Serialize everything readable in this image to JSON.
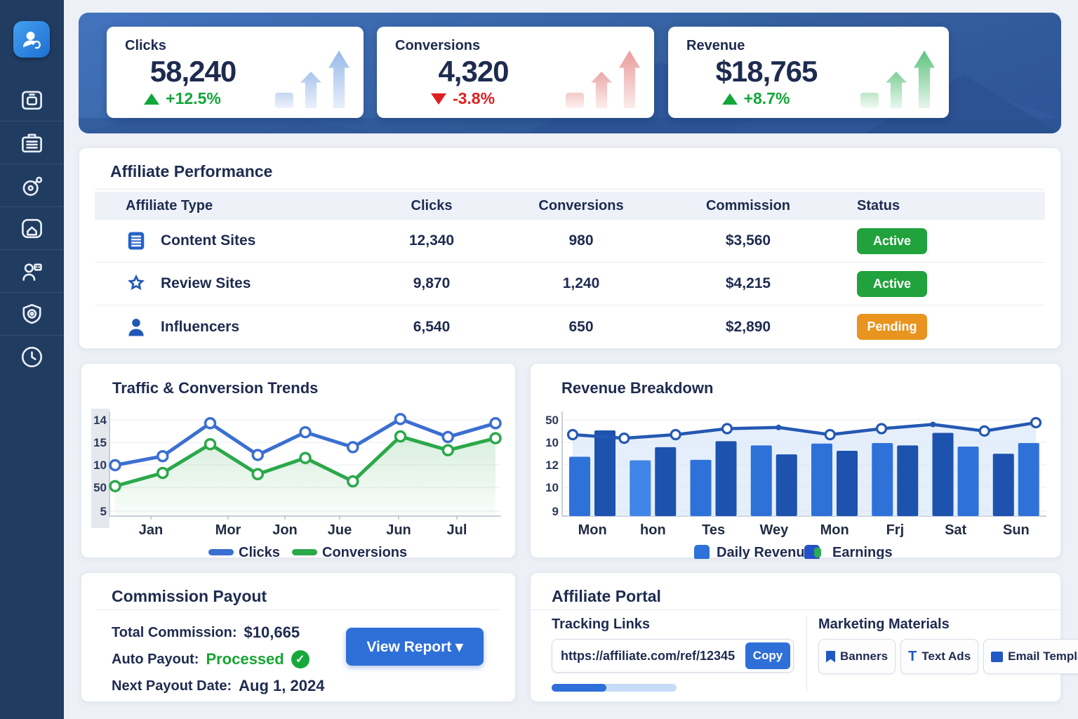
{
  "sidebar": {
    "logo": {
      "name": "app-logo"
    },
    "icons": [
      {
        "name": "archive-icon"
      },
      {
        "name": "briefcase-icon"
      },
      {
        "name": "tag-icon"
      },
      {
        "name": "home-icon"
      },
      {
        "name": "users-icon"
      },
      {
        "name": "shield-icon"
      },
      {
        "name": "clock-icon"
      }
    ]
  },
  "kpis": [
    {
      "label": "Clicks",
      "value": "58,240",
      "delta": "+12.5%",
      "trend": "up"
    },
    {
      "label": "Conversions",
      "value": "4,320",
      "delta": "-3.8%",
      "trend": "down"
    },
    {
      "label": "Revenue",
      "value": "$18,765",
      "delta": "+8.7%",
      "trend": "up"
    }
  ],
  "table": {
    "title": "Affiliate Performance",
    "columns": [
      "Affiliate Type",
      "Clicks",
      "Conversions",
      "Commission",
      "Status"
    ],
    "rows": [
      {
        "icon": "document-icon",
        "type": "Content Sites",
        "clicks": "12,340",
        "conversions": "980",
        "commission": "$3,560",
        "status": "Active",
        "status_color": "#21a23c"
      },
      {
        "icon": "star-icon",
        "type": "Review Sites",
        "clicks": "9,870",
        "conversions": "1,240",
        "commission": "$4,215",
        "status": "Active",
        "status_color": "#21a23c"
      },
      {
        "icon": "person-icon",
        "type": "Influencers",
        "clicks": "6,540",
        "conversions": "650",
        "commission": "$2,890",
        "status": "Pending",
        "status_color": "#e8941e"
      }
    ]
  },
  "charts": {
    "traffic": {
      "title": "Traffic & Conversion Trends"
    },
    "revenue": {
      "title": "Revenue Breakdown"
    }
  },
  "chart_data": [
    {
      "type": "line",
      "title": "Traffic & Conversion Trends",
      "x_tick_labels": [
        "Jan",
        "Mor",
        "Jon",
        "Jue",
        "Jun",
        "Jul"
      ],
      "y_tick_labels": [
        "14",
        "15",
        "10",
        "50",
        "5"
      ],
      "ylim": [
        0,
        17
      ],
      "grid": true,
      "legend_position": "bottom",
      "series": [
        {
          "name": "Clicks",
          "color": "#3b6fd1",
          "values": [
            8.5,
            10,
            15.5,
            10.2,
            14,
            11.5,
            16.2,
            13.2,
            15.5
          ]
        },
        {
          "name": "Conversions",
          "color": "#2ba84a",
          "area_fill": true,
          "values": [
            5,
            7.2,
            12,
            7,
            9.7,
            5.8,
            13.3,
            11,
            13
          ]
        }
      ]
    },
    {
      "type": "bar",
      "title": "Revenue Breakdown",
      "categories": [
        "Mon",
        "hon",
        "Tes",
        "Wey",
        "Mon",
        "Frj",
        "Sat",
        "Sun"
      ],
      "y_tick_labels": [
        "50",
        "10",
        "12",
        "10",
        "9"
      ],
      "ylim": [
        0,
        17
      ],
      "grid": true,
      "legend_position": "bottom",
      "series": [
        {
          "name": "Daily Revenue",
          "type": "bar",
          "values": [
            9.9,
            14.3,
            9.3,
            11.5,
            9.4,
            12.5,
            11.8,
            10.3,
            12.1,
            10.9,
            12.2,
            11.8,
            13.9,
            11.6,
            10.4,
            12.2
          ],
          "colors": [
            "#2e72d9",
            "#1d52ae",
            "#3f86e8",
            "#1d52ae",
            "#2e72d9",
            "#1d52ae",
            "#2e72d9",
            "#1d52ae",
            "#2e72d9",
            "#1d52ae",
            "#2e72d9",
            "#1d52ae",
            "#1d52ae",
            "#2e72d9",
            "#1d52ae",
            "#2e72d9"
          ]
        },
        {
          "name": "Earnings",
          "type": "line",
          "color": "#2458b3",
          "values": [
            13.6,
            13.0,
            13.6,
            14.6,
            14.8,
            13.6,
            14.6,
            15.3,
            14.2,
            15.6
          ]
        }
      ]
    }
  ],
  "payout": {
    "title": "Commission Payout",
    "total_label": "Total Commission:",
    "total_value": "$10,665",
    "auto_label": "Auto Payout:",
    "auto_value": "Processed",
    "check": "✓",
    "next_label": "Next Payout Date:",
    "next_value": "Aug 1, 2024",
    "button": "View Report ▾"
  },
  "portal": {
    "title": "Affiliate Portal",
    "tracking_title": "Tracking Links",
    "tracking_url": "https://affiliate.com/ref/12345",
    "copy_label": "Copy",
    "progress_percent": 44,
    "materials_title": "Marketing Materials",
    "materials": [
      {
        "label": "Banners",
        "icon": "bookmark-icon"
      },
      {
        "label": "Text Ads",
        "icon": "text-ads-icon"
      },
      {
        "label": "Email Templates",
        "icon": "email-template-icon"
      }
    ]
  },
  "colors": {
    "accent_blue": "#2e6fd8",
    "positive_green": "#12a63a",
    "negative_red": "#df2020",
    "pending_orange": "#e8941e",
    "navy_text": "#1e2b50",
    "banner_blue": "#3a67b4",
    "sidebar_navy": "#203c60"
  }
}
